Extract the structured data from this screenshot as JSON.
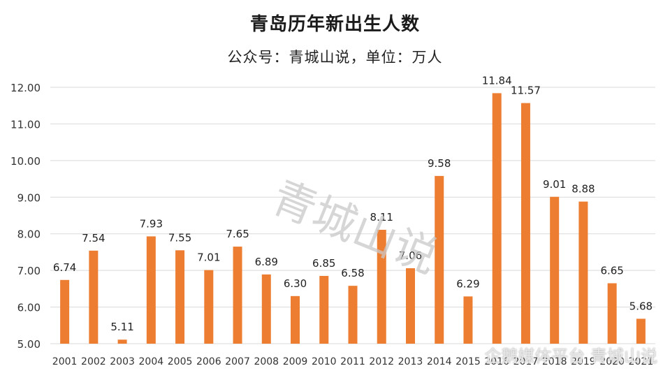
{
  "chart_data": {
    "type": "bar",
    "title": "青岛历年新出生人数",
    "subtitle": "公众号：青城山说，单位：万人",
    "categories": [
      "2001",
      "2002",
      "2003",
      "2004",
      "2005",
      "2006",
      "2007",
      "2008",
      "2009",
      "2010",
      "2011",
      "2012",
      "2013",
      "2014",
      "2015",
      "2016",
      "2017",
      "2018",
      "2019",
      "2020",
      "2021"
    ],
    "values": [
      6.74,
      7.54,
      5.11,
      7.93,
      7.55,
      7.01,
      7.65,
      6.89,
      6.3,
      6.85,
      6.58,
      8.11,
      7.06,
      9.58,
      6.29,
      11.84,
      11.57,
      9.01,
      8.88,
      6.65,
      5.68
    ],
    "value_labels": [
      "6.74",
      "7.54",
      "5.11",
      "7.93",
      "7.55",
      "7.01",
      "7.65",
      "6.89",
      "6.30",
      "6.85",
      "6.58",
      "8.11",
      "7.06",
      "9.58",
      "6.29",
      "11.84",
      "11.57",
      "9.01",
      "8.88",
      "6.65",
      "5.68"
    ],
    "ylim": [
      5,
      12
    ],
    "yticks": [
      5,
      6,
      7,
      8,
      9,
      10,
      11,
      12
    ],
    "ytick_labels": [
      "5.00",
      "6.00",
      "7.00",
      "8.00",
      "9.00",
      "10.00",
      "11.00",
      "12.00"
    ],
    "grid": true,
    "legend": "none",
    "bar_color": "#ED7D31"
  },
  "watermark_text": "青城山说",
  "footer_watermark": "企鹅媒体平台 青城山说"
}
